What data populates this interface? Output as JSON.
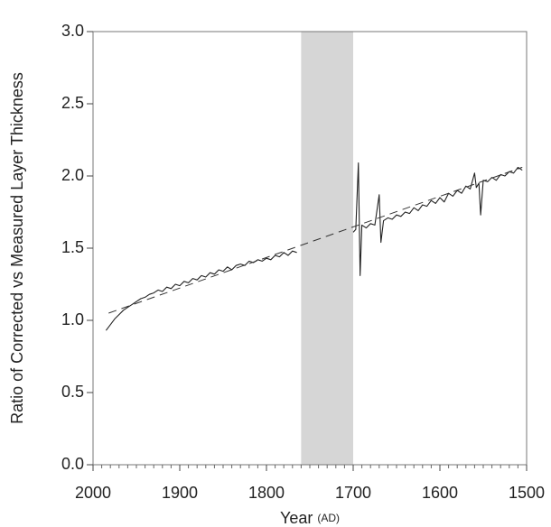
{
  "chart_data": {
    "type": "line",
    "x_label": "Year",
    "x_label_unit": "(AD)",
    "y_label": "Ratio of Corrected vs Measured Layer Thickness",
    "xlim": [
      2000,
      1500
    ],
    "xticks": [
      2000,
      1900,
      1800,
      1700,
      1600,
      1500
    ],
    "xminorticks": [
      1990,
      1980,
      1970,
      1960,
      1950,
      1940,
      1930,
      1920,
      1910,
      1890,
      1880,
      1870,
      1860,
      1850,
      1840,
      1830,
      1820,
      1810,
      1790,
      1780,
      1770,
      1760,
      1750,
      1740,
      1730,
      1720,
      1710,
      1690,
      1680,
      1670,
      1660,
      1650,
      1640,
      1630,
      1620,
      1610,
      1590,
      1580,
      1570,
      1560,
      1550,
      1540,
      1530,
      1520,
      1510
    ],
    "ylim": [
      0,
      3
    ],
    "yticks": [
      {
        "value": 0,
        "label": "0.0"
      },
      0.5,
      {
        "value": 1,
        "label": "1.0"
      },
      1.5,
      {
        "value": 2,
        "label": "2.0"
      },
      2.5,
      {
        "value": 3,
        "label": "3.0"
      }
    ],
    "shaded_span": [
      1760,
      1700
    ],
    "shaded_color": "#d6d6d6",
    "series": [
      {
        "color": "#222222",
        "style": "solid",
        "x": [
          1985,
          1980,
          1975,
          1970,
          1965,
          1960,
          1955,
          1950,
          1945,
          1940,
          1935,
          1930,
          1925,
          1920,
          1915,
          1910,
          1905,
          1900,
          1895,
          1890,
          1885,
          1880,
          1875,
          1870,
          1865,
          1860,
          1855,
          1850,
          1845,
          1840,
          1835,
          1830,
          1825,
          1820,
          1815,
          1810,
          1805,
          1800,
          1795,
          1790,
          1785,
          1780,
          1775,
          1770,
          1765,
          1735,
          1700,
          1697,
          1694,
          1692,
          1690,
          1685,
          1680,
          1675,
          1670,
          1668,
          1665,
          1660,
          1655,
          1650,
          1645,
          1640,
          1635,
          1630,
          1625,
          1620,
          1615,
          1610,
          1605,
          1600,
          1595,
          1590,
          1585,
          1580,
          1575,
          1570,
          1565,
          1560,
          1558,
          1555,
          1553,
          1550,
          1545,
          1540,
          1535,
          1530,
          1525,
          1520,
          1515,
          1510,
          1505
        ],
        "values": [
          0.93,
          0.97,
          1.01,
          1.04,
          1.07,
          1.09,
          1.11,
          1.13,
          1.15,
          1.16,
          1.18,
          1.19,
          1.21,
          1.2,
          1.23,
          1.22,
          1.25,
          1.24,
          1.27,
          1.26,
          1.29,
          1.28,
          1.31,
          1.3,
          1.33,
          1.32,
          1.35,
          1.34,
          1.37,
          1.35,
          1.38,
          1.39,
          1.38,
          1.41,
          1.4,
          1.42,
          1.41,
          1.43,
          1.42,
          1.45,
          1.44,
          1.47,
          1.45,
          1.48,
          1.47,
          null,
          1.61,
          1.63,
          2.09,
          1.31,
          1.66,
          1.64,
          1.67,
          1.66,
          1.87,
          1.54,
          1.69,
          1.71,
          1.7,
          1.73,
          1.72,
          1.75,
          1.74,
          1.78,
          1.76,
          1.8,
          1.79,
          1.83,
          1.81,
          1.85,
          1.82,
          1.88,
          1.86,
          1.9,
          1.88,
          1.93,
          1.91,
          2.02,
          1.92,
          1.95,
          1.73,
          1.97,
          1.96,
          1.99,
          1.97,
          2.01,
          2.0,
          2.03,
          2.02,
          2.06,
          2.04
        ]
      },
      {
        "color": "#333333",
        "style": "dashed",
        "x": [
          1982,
          1505
        ],
        "values": [
          1.05,
          2.06
        ]
      }
    ]
  }
}
